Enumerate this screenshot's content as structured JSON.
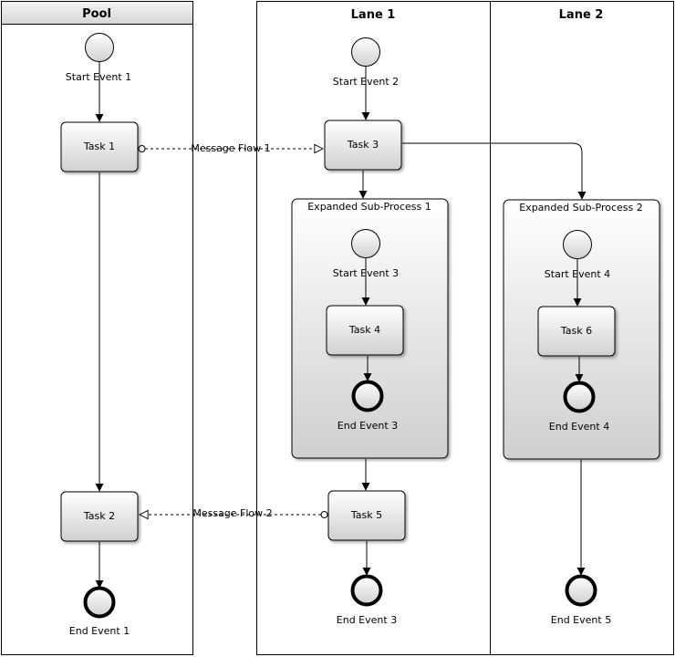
{
  "pools": {
    "pool": "Pool",
    "lane1": "Lane 1",
    "lane2": "Lane 2"
  },
  "events": {
    "start1": "Start Event 1",
    "start2": "Start Event 2",
    "start3": "Start Event 3",
    "start4": "Start Event 4",
    "end1": "End Event 1",
    "end3_sub": "End Event 3",
    "end3": "End Event 3",
    "end4": "End Event 4",
    "end5": "End Event 5"
  },
  "tasks": {
    "task1": "Task 1",
    "task2": "Task 2",
    "task3": "Task 3",
    "task4": "Task 4",
    "task5": "Task 5",
    "task6": "Task 6"
  },
  "subprocesses": {
    "sp1": "Expanded Sub-Process 1",
    "sp2": "Expanded Sub-Process 2"
  },
  "flows": {
    "msg1": "Message Flow 1",
    "msg2": "Message Flow 2"
  },
  "colors": {
    "shape_fill_top": "#ffffff",
    "shape_fill_bottom": "#d0d0d0",
    "pool_header_top": "#f4f4f4",
    "pool_header_bottom": "#d6d6d6",
    "stroke": "#000000"
  }
}
